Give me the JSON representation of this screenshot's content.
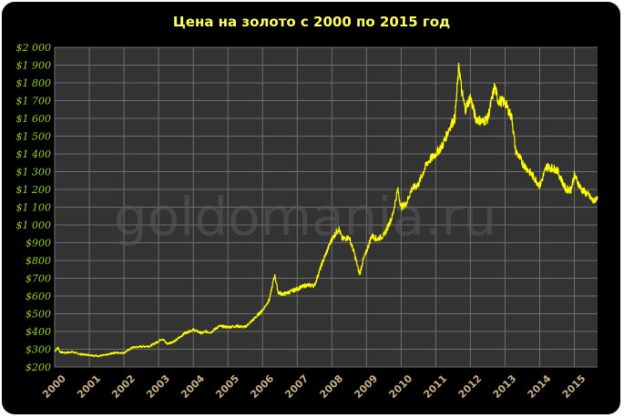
{
  "watermark": "goldomania.ru",
  "colors": {
    "background": "#000000",
    "plot_area": "#333333",
    "grid": "#6e6e6e",
    "line": "#ffff00",
    "title": "#ffff66",
    "y_ticks": "#9acd32",
    "x_ticks": "#c8b08a"
  },
  "chart_data": {
    "type": "line",
    "title": "Цена на золото с 2000 по 2015 год",
    "xlabel": "",
    "ylabel": "",
    "xlim": [
      2000,
      2015.67
    ],
    "ylim": [
      200,
      2000
    ],
    "grid": true,
    "legend": "none",
    "y_ticks": [
      "$2 000",
      "$1 900",
      "$1 800",
      "$1 700",
      "$1 600",
      "$1 500",
      "$1 400",
      "$1 300",
      "$1 200",
      "$1 100",
      "$1 000",
      "$900",
      "$800",
      "$700",
      "$600",
      "$500",
      "$400",
      "$300",
      "$200"
    ],
    "y_tick_values": [
      2000,
      1900,
      1800,
      1700,
      1600,
      1500,
      1400,
      1300,
      1200,
      1100,
      1000,
      900,
      800,
      700,
      600,
      500,
      400,
      300,
      200
    ],
    "x_ticks": [
      "2000",
      "2001",
      "2002",
      "2003",
      "2004",
      "2005",
      "2006",
      "2007",
      "2008",
      "2009",
      "2010",
      "2011",
      "2012",
      "2013",
      "2014",
      "2015"
    ],
    "x_tick_values": [
      2000,
      2001,
      2002,
      2003,
      2004,
      2005,
      2006,
      2007,
      2008,
      2009,
      2010,
      2011,
      2012,
      2013,
      2014,
      2015
    ],
    "series": [
      {
        "x": [
          2000.0,
          2000.1,
          2000.15,
          2000.3,
          2000.5,
          2000.75,
          2001.0,
          2001.25,
          2001.5,
          2001.7,
          2002.0,
          2002.25,
          2002.5,
          2002.75,
          2003.0,
          2003.1,
          2003.25,
          2003.5,
          2003.75,
          2004.0,
          2004.25,
          2004.35,
          2004.5,
          2004.75,
          2005.0,
          2005.25,
          2005.5,
          2005.75,
          2006.0,
          2006.2,
          2006.35,
          2006.45,
          2006.6,
          2006.75,
          2007.0,
          2007.25,
          2007.5,
          2007.75,
          2008.0,
          2008.2,
          2008.3,
          2008.5,
          2008.65,
          2008.8,
          2008.9,
          2009.0,
          2009.15,
          2009.3,
          2009.5,
          2009.75,
          2009.9,
          2010.0,
          2010.15,
          2010.3,
          2010.5,
          2010.75,
          2011.0,
          2011.2,
          2011.4,
          2011.55,
          2011.67,
          2011.75,
          2011.85,
          2012.0,
          2012.15,
          2012.35,
          2012.5,
          2012.7,
          2012.8,
          2013.0,
          2013.2,
          2013.3,
          2013.5,
          2013.7,
          2013.9,
          2014.0,
          2014.2,
          2014.5,
          2014.75,
          2014.9,
          2015.0,
          2015.2,
          2015.4,
          2015.55,
          2015.67
        ],
        "values": [
          290,
          310,
          285,
          280,
          285,
          272,
          268,
          262,
          268,
          280,
          280,
          310,
          315,
          318,
          345,
          360,
          330,
          350,
          390,
          410,
          390,
          400,
          395,
          430,
          425,
          430,
          425,
          470,
          520,
          580,
          720,
          620,
          610,
          620,
          640,
          660,
          660,
          800,
          920,
          980,
          920,
          930,
          840,
          720,
          800,
          850,
          940,
          920,
          940,
          1050,
          1200,
          1100,
          1120,
          1200,
          1230,
          1350,
          1400,
          1450,
          1550,
          1600,
          1900,
          1750,
          1650,
          1720,
          1600,
          1580,
          1600,
          1780,
          1700,
          1690,
          1600,
          1420,
          1350,
          1300,
          1250,
          1220,
          1330,
          1310,
          1200,
          1200,
          1280,
          1200,
          1170,
          1130,
          1160
        ]
      }
    ]
  }
}
